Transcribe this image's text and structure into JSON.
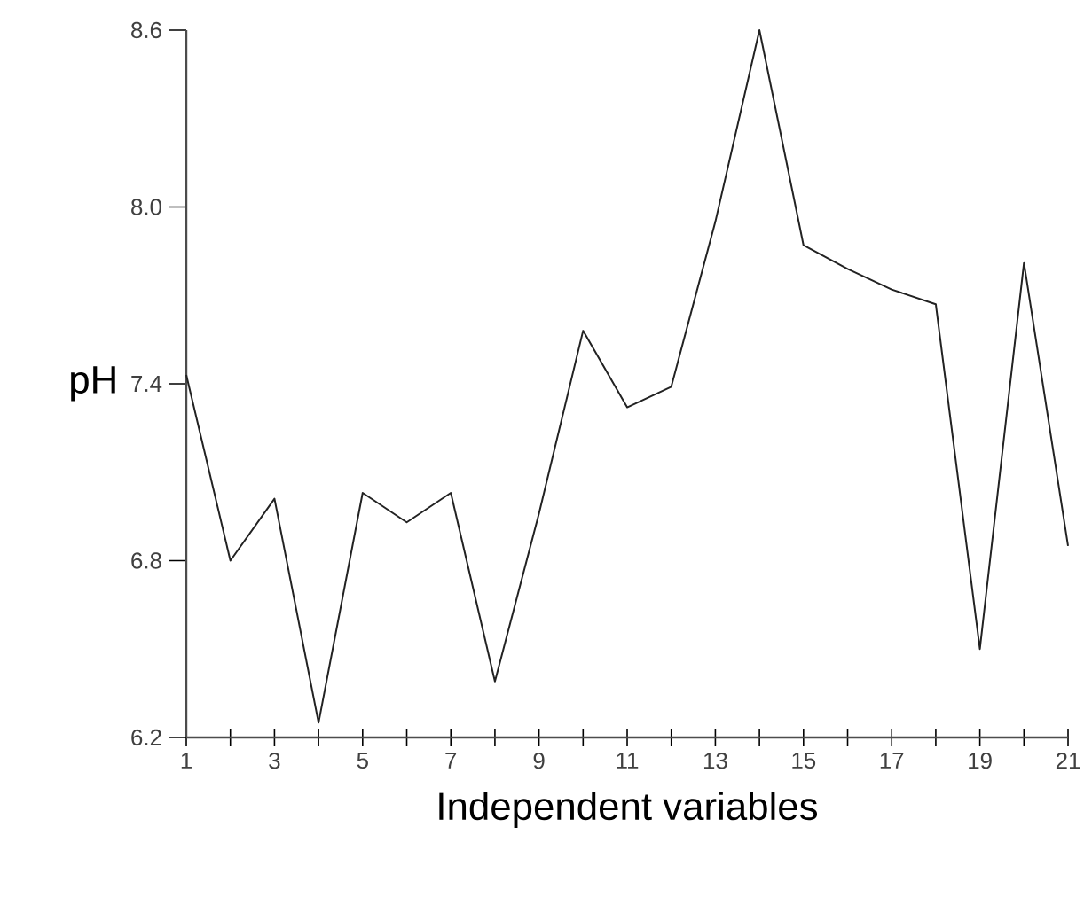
{
  "chart_data": {
    "type": "line",
    "xlabel": "Independent variables",
    "ylabel": "pH",
    "color": "#222222",
    "x": [
      1,
      2,
      3,
      4,
      5,
      6,
      7,
      8,
      9,
      10,
      11,
      12,
      13,
      14,
      15,
      16,
      17,
      18,
      19,
      20,
      21
    ],
    "values": [
      7.43,
      6.8,
      7.01,
      6.25,
      7.03,
      6.93,
      7.03,
      6.39,
      6.96,
      7.58,
      7.32,
      7.39,
      7.95,
      8.6,
      7.87,
      7.79,
      7.72,
      7.67,
      6.5,
      7.81,
      6.85
    ],
    "xlim": [
      1,
      21
    ],
    "xticks": [
      1,
      {
        "value": 2,
        "label": null
      },
      3,
      {
        "value": 4,
        "label": null
      },
      5,
      {
        "value": 6,
        "label": null
      },
      7,
      {
        "value": 8,
        "label": null
      },
      9,
      {
        "value": 10,
        "label": null
      },
      11,
      {
        "value": 12,
        "label": null
      },
      13,
      {
        "value": 14,
        "label": null
      },
      15,
      {
        "value": 16,
        "label": null
      },
      17,
      {
        "value": 18,
        "label": null
      },
      19,
      {
        "value": 20,
        "label": null
      },
      21
    ],
    "ylim": [
      6.2,
      8.6
    ],
    "yticks": [
      6.2,
      6.8,
      7.4,
      {
        "value": 8.0,
        "label": "8.0"
      },
      8.6
    ]
  }
}
